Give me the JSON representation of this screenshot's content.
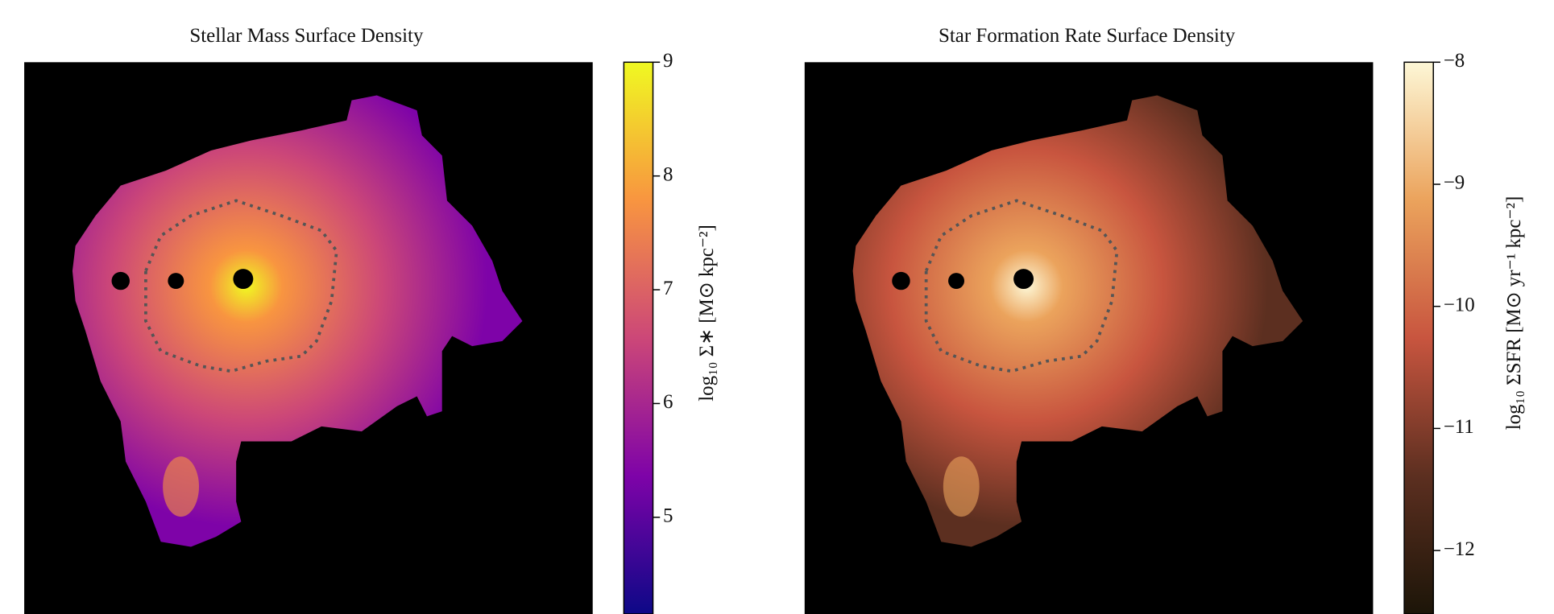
{
  "chart_data": [
    {
      "type": "heatmap",
      "title": "Stellar Mass Surface Density",
      "colorbar_label": "log₁₀ Σ∗ [M⊙ kpc⁻²]",
      "ylim": [
        4.15,
        9
      ],
      "yticks": [
        5,
        6,
        7,
        8,
        9
      ],
      "colors": [
        "#0d0887",
        "#7e03a8",
        "#cc4778",
        "#f89540",
        "#f0f921"
      ]
    },
    {
      "type": "heatmap",
      "title": "Star Formation Rate Surface Density",
      "colorbar_label": "log₁₀ ΣSFR [M⊙ yr⁻¹ kpc⁻²]",
      "ylim": [
        -12.52,
        -8
      ],
      "yticks": [
        {
          "value": -12,
          "label": "−12"
        },
        {
          "value": -11,
          "label": "−11"
        },
        {
          "value": -10,
          "label": "−10"
        },
        {
          "value": -9,
          "label": "−9"
        },
        {
          "value": -8,
          "label": "−8"
        }
      ],
      "colors": [
        "#1c1508",
        "#5c2f20",
        "#c8553f",
        "#eba35c",
        "#fdf7d6"
      ]
    }
  ]
}
